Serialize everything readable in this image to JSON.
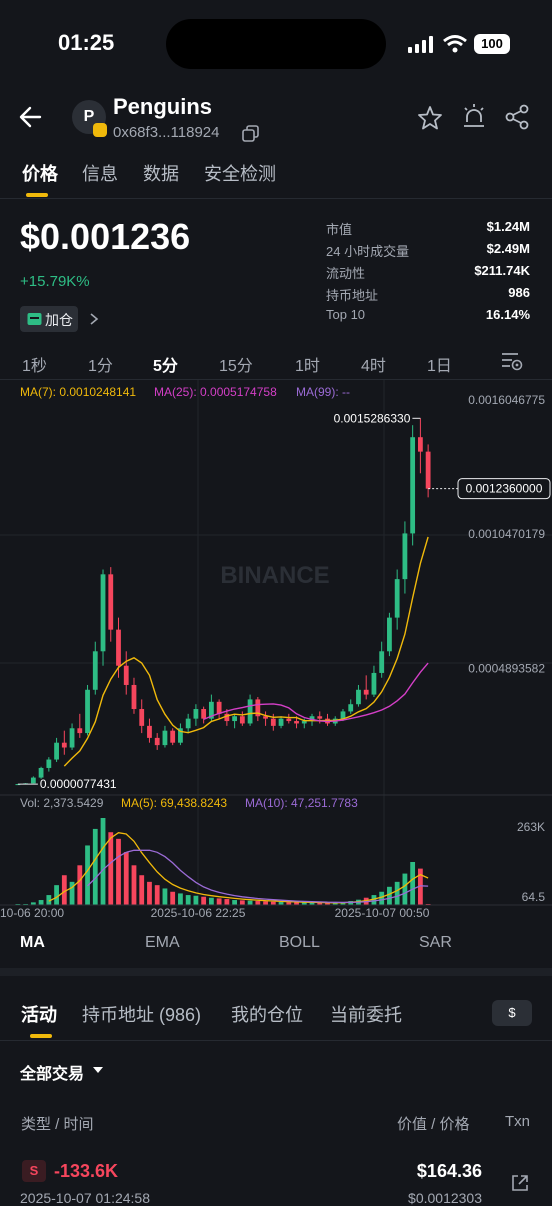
{
  "status": {
    "time": "01:25",
    "battery": "100"
  },
  "header": {
    "avatar_letter": "P",
    "title": "Penguins",
    "address": "0x68f3...118924"
  },
  "tabs": [
    "价格",
    "信息",
    "数据",
    "安全检测"
  ],
  "price": {
    "value": "$0.001236",
    "change": "+15.79K%",
    "add_position": "加仓"
  },
  "stats": [
    {
      "label": "市值",
      "value": "$1.24M"
    },
    {
      "label": "24 小时成交量",
      "value": "$2.49M"
    },
    {
      "label": "流动性",
      "value": "$211.74K"
    },
    {
      "label": "持币地址",
      "value": "986"
    },
    {
      "label": "Top 10",
      "value": "16.14%"
    }
  ],
  "timeframes": [
    "1秒",
    "1分",
    "5分",
    "15分",
    "1时",
    "4时",
    "1日"
  ],
  "active_timeframe": "5分",
  "chart_data": {
    "type": "candlestick",
    "watermark": "BINANCE",
    "ma_legend": {
      "ma7": "MA(7): 0.0010248141",
      "ma25": "MA(25): 0.0005174758",
      "ma99": "MA(99): --"
    },
    "y_ticks": [
      "0.0016046775",
      "0.0010470179",
      "0.0004893582"
    ],
    "y_tick_values": [
      0.0016046775,
      0.0010470179,
      0.0004893582
    ],
    "ylim": [
      0.0,
      0.0016046775
    ],
    "high_label": "0.0015286330",
    "low_label": "0.0000077431",
    "current_label": "0.0012360000",
    "x_ticks": [
      "10-06 20:00",
      "2025-10-06 22:25",
      "2025-10-07 00:50"
    ],
    "colors": {
      "up": "#2ebd85",
      "down": "#f6465d",
      "ma7": "#f0b90b",
      "ma25": "#d43fc7",
      "ma99": "#9b6bd6"
    },
    "candles": [
      [
        7.7e-06,
        8e-06,
        7.7e-06,
        7.9e-06
      ],
      [
        7.9e-06,
        1.2e-05,
        7.8e-06,
        1.1e-05
      ],
      [
        1.1e-05,
        4e-05,
        1.1e-05,
        3.5e-05
      ],
      [
        3.5e-05,
        8e-05,
        3e-05,
        7.5e-05
      ],
      [
        7.5e-05,
        0.00012,
        6e-05,
        0.00011
      ],
      [
        0.00011,
        0.0002,
        0.0001,
        0.00018
      ],
      [
        0.00018,
        0.00023,
        0.00013,
        0.00016
      ],
      [
        0.00016,
        0.00026,
        0.00015,
        0.00024
      ],
      [
        0.00024,
        0.0003,
        0.0002,
        0.00022
      ],
      [
        0.00022,
        0.00042,
        0.00021,
        0.0004
      ],
      [
        0.0004,
        0.0006,
        0.00038,
        0.00056
      ],
      [
        0.00056,
        0.0009,
        0.0005,
        0.00088
      ],
      [
        0.00088,
        0.00091,
        0.0006,
        0.00065
      ],
      [
        0.00065,
        0.0007,
        0.00045,
        0.0005
      ],
      [
        0.0005,
        0.00056,
        0.00038,
        0.00042
      ],
      [
        0.00042,
        0.00045,
        0.0003,
        0.00032
      ],
      [
        0.00032,
        0.00036,
        0.00022,
        0.00025
      ],
      [
        0.00025,
        0.00028,
        0.00018,
        0.0002
      ],
      [
        0.0002,
        0.00022,
        0.00015,
        0.00017
      ],
      [
        0.00017,
        0.00025,
        0.00016,
        0.00023
      ],
      [
        0.00023,
        0.00024,
        0.00017,
        0.00018
      ],
      [
        0.00018,
        0.00026,
        0.00017,
        0.00024
      ],
      [
        0.00024,
        0.0003,
        0.00022,
        0.00028
      ],
      [
        0.00028,
        0.00034,
        0.00025,
        0.00032
      ],
      [
        0.00032,
        0.00033,
        0.00026,
        0.00028
      ],
      [
        0.00028,
        0.00038,
        0.00027,
        0.00035
      ],
      [
        0.00035,
        0.00036,
        0.00028,
        0.0003
      ],
      [
        0.0003,
        0.00032,
        0.00025,
        0.00027
      ],
      [
        0.00027,
        0.0003,
        0.00024,
        0.00029
      ],
      [
        0.00029,
        0.00031,
        0.00025,
        0.00026
      ],
      [
        0.00026,
        0.00038,
        0.00025,
        0.00036
      ],
      [
        0.00036,
        0.00037,
        0.00027,
        0.00029
      ],
      [
        0.00029,
        0.00031,
        0.00025,
        0.00028
      ],
      [
        0.00028,
        0.0003,
        0.00023,
        0.00025
      ],
      [
        0.00025,
        0.00029,
        0.00024,
        0.00028
      ],
      [
        0.00028,
        0.0003,
        0.00026,
        0.00027
      ],
      [
        0.00027,
        0.00029,
        0.00024,
        0.00026
      ],
      [
        0.00026,
        0.00028,
        0.00024,
        0.00027
      ],
      [
        0.00027,
        0.0003,
        0.00025,
        0.00029
      ],
      [
        0.00029,
        0.00031,
        0.00026,
        0.00028
      ],
      [
        0.00028,
        0.0003,
        0.00025,
        0.00026
      ],
      [
        0.00026,
        0.00029,
        0.00025,
        0.00028
      ],
      [
        0.00028,
        0.00032,
        0.00027,
        0.00031
      ],
      [
        0.00031,
        0.00036,
        0.0003,
        0.00034
      ],
      [
        0.00034,
        0.00042,
        0.00033,
        0.0004
      ],
      [
        0.0004,
        0.00046,
        0.00036,
        0.00038
      ],
      [
        0.00038,
        0.0005,
        0.00037,
        0.00047
      ],
      [
        0.00047,
        0.0006,
        0.00045,
        0.00056
      ],
      [
        0.00056,
        0.00072,
        0.00054,
        0.0007
      ],
      [
        0.0007,
        0.0009,
        0.00065,
        0.00086
      ],
      [
        0.00086,
        0.0011,
        0.0008,
        0.00105
      ],
      [
        0.00105,
        0.0015,
        0.001,
        0.00145
      ],
      [
        0.00145,
        0.0015286,
        0.0013,
        0.00139
      ],
      [
        0.00139,
        0.00142,
        0.0012,
        0.001236
      ]
    ],
    "volume_legend": {
      "vol": "Vol: 2,373.5429",
      "ma5": "MA(5): 69,438.8243",
      "ma10": "MA(10): 47,251.7783"
    },
    "volume_ticks": [
      "263K",
      "64.5"
    ],
    "volume_max": 263000,
    "volumes": [
      1000,
      3000,
      8000,
      15000,
      30000,
      60000,
      90000,
      70000,
      120000,
      180000,
      230000,
      263000,
      220000,
      200000,
      160000,
      120000,
      90000,
      70000,
      60000,
      50000,
      40000,
      35000,
      30000,
      28000,
      25000,
      22000,
      20000,
      18000,
      15000,
      14000,
      13000,
      12000,
      11000,
      10000,
      9000,
      8500,
      8000,
      7500,
      7000,
      6500,
      6000,
      7000,
      9000,
      12000,
      16000,
      22000,
      30000,
      40000,
      55000,
      70000,
      95000,
      130000,
      110000,
      2373
    ]
  },
  "indicator_tabs": [
    "MA",
    "EMA",
    "BOLL",
    "SAR"
  ],
  "activity_tabs": [
    "活动",
    "持币地址 (986)",
    "我的仓位",
    "当前委托"
  ],
  "currency_button": "$",
  "filter_label": "全部交易",
  "table_headers": {
    "type_time": "类型 / 时间",
    "value_price": "价值 / 价格",
    "txn": "Txn"
  },
  "trade": {
    "side": "S",
    "amount": "-133.6K",
    "value": "$164.36",
    "time": "2025-10-07 01:24:58",
    "price": "$0.0012303"
  }
}
